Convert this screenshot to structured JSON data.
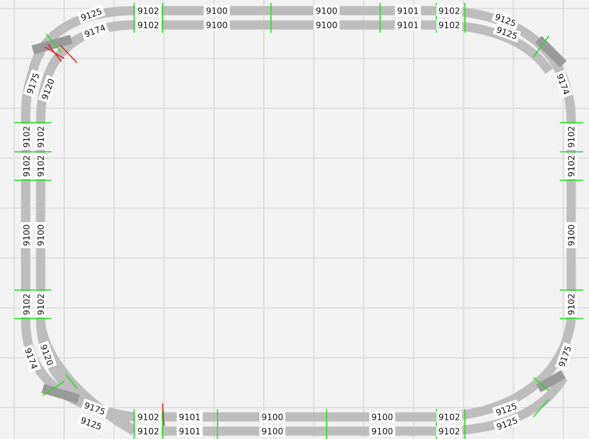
{
  "diagram": {
    "colors": {
      "background": "#f2f2f2",
      "grid": "#e0e0e0",
      "track": "#bdbdbd",
      "track_dark": "#9a9a9a",
      "joint": "#22dd22",
      "end_mark": "#dd2222",
      "label_bg": "#ffffff"
    },
    "labels": {
      "outer_top": [
        "9102",
        "9100",
        "9100",
        "9101",
        "9102"
      ],
      "inner_top": [
        "9102",
        "9100",
        "9100",
        "9101",
        "9102"
      ],
      "outer_bottom": [
        "9102",
        "9101",
        "9100",
        "9100",
        "9102"
      ],
      "inner_bottom": [
        "9102",
        "9101",
        "9100",
        "9100",
        "9102"
      ],
      "outer_left": [
        "9102",
        "9102",
        "9100",
        "9102"
      ],
      "inner_left": [
        "9102",
        "9102",
        "9100",
        "9102"
      ],
      "right": [
        "9102",
        "9102",
        "9100",
        "9102"
      ],
      "tl_outer": [
        "9125",
        "9175"
      ],
      "tl_inner": [
        "9174",
        "9120"
      ],
      "tr": [
        "9125",
        "9125",
        "9174"
      ],
      "bl_outer": [
        "9174",
        "9175",
        "9125"
      ],
      "bl_inner": [
        "9120"
      ],
      "br": [
        "9175",
        "9125",
        "9125"
      ]
    }
  }
}
